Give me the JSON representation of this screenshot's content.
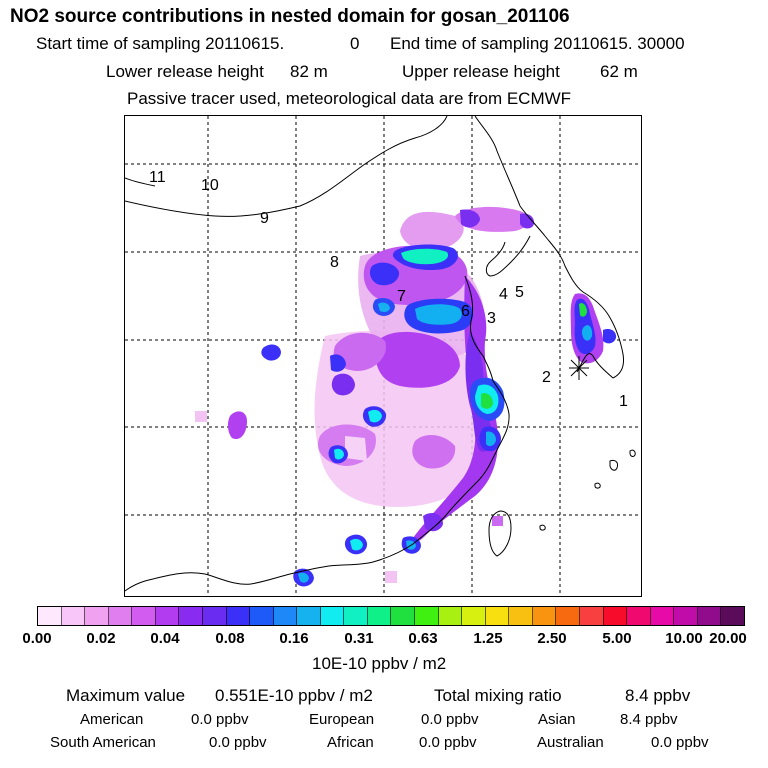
{
  "header": {
    "title": "NO2 source contributions in nested domain for gosan_201106",
    "start_label": "Start time of sampling 20110615.",
    "start_value": "0",
    "end_label": "End time of sampling 20110615. 30000",
    "lower_label": "Lower release height",
    "lower_value": "82 m",
    "upper_label": "Upper release height",
    "upper_value": "62 m",
    "tracer_note": "Passive tracer used, meteorological data are from ECMWF"
  },
  "map": {
    "region_labels": [
      "1",
      "2",
      "3",
      "4",
      "5",
      "6",
      "7",
      "8",
      "9",
      "10",
      "11"
    ]
  },
  "colorbar": {
    "colors": [
      "#fde8fd",
      "#f9c6f9",
      "#f0a2f0",
      "#e07ef0",
      "#d25bf0",
      "#b23cf0",
      "#8a2cf0",
      "#6a2cf0",
      "#3a30f8",
      "#1e5af8",
      "#1e88f8",
      "#16b2f0",
      "#10ecf0",
      "#10f0c2",
      "#10f088",
      "#20e040",
      "#40f010",
      "#a8f010",
      "#d8f010",
      "#f8e010",
      "#f8c010",
      "#f89410",
      "#f86a10",
      "#f84040",
      "#f80c2c",
      "#f00a70",
      "#e80aa8",
      "#c00ca8",
      "#900c8c",
      "#5a0c5a"
    ],
    "ticks": [
      "0.00",
      "0.02",
      "0.04",
      "0.08",
      "0.16",
      "0.31",
      "0.63",
      "1.25",
      "2.50",
      "5.00",
      "10.00",
      "20.00"
    ],
    "units": "10E-10 ppbv / m2"
  },
  "summary": {
    "max_label": "Maximum value",
    "max_value": "0.551E-10 ppbv / m2",
    "total_label": "Total mixing ratio",
    "total_value": "8.4 ppbv",
    "regions": [
      {
        "name": "American",
        "value": "0.0 ppbv"
      },
      {
        "name": "European",
        "value": "0.0 ppbv"
      },
      {
        "name": "Asian",
        "value": "8.4 ppbv"
      },
      {
        "name": "South American",
        "value": "0.0 ppbv"
      },
      {
        "name": "African",
        "value": "0.0 ppbv"
      },
      {
        "name": "Australian",
        "value": "0.0 ppbv"
      }
    ]
  }
}
